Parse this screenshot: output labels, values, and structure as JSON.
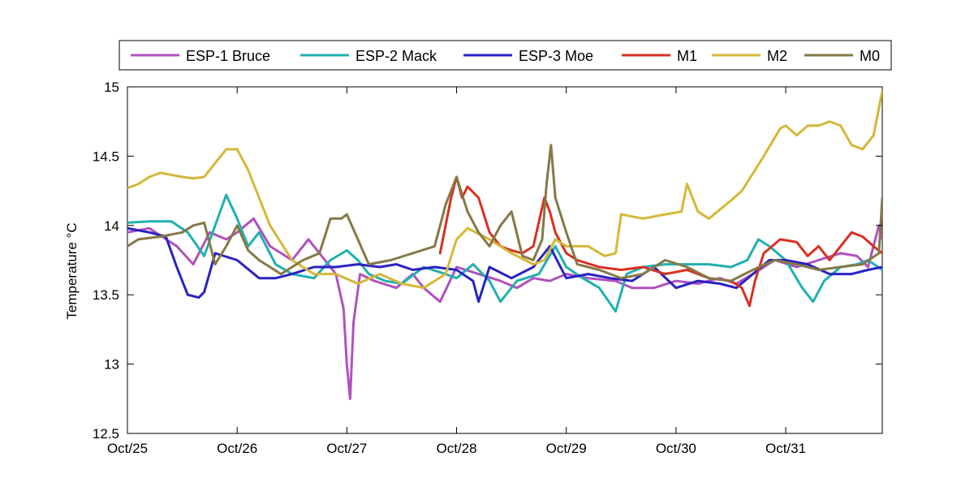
{
  "chart_data": {
    "type": "line",
    "title": "",
    "xlabel": "",
    "ylabel": "Temperature °C",
    "x_tick_labels": [
      "Oct/25",
      "Oct/26",
      "Oct/27",
      "Oct/28",
      "Oct/29",
      "Oct/30",
      "Oct/31"
    ],
    "x_tick_days": [
      25,
      26,
      27,
      28,
      29,
      30,
      31
    ],
    "xlim": [
      25,
      31.88
    ],
    "ylim": [
      12.5,
      15
    ],
    "y_ticks": [
      12.5,
      13,
      13.5,
      14,
      14.5,
      15
    ],
    "y_tick_labels": [
      "12.5",
      "13",
      "13.5",
      "14",
      "14.5",
      "15"
    ],
    "grid": false,
    "legend_position": "top",
    "legend_orientation": "horizontal",
    "series": [
      {
        "name": "ESP-1 Bruce",
        "color": "#b150c0",
        "x": [
          25.0,
          25.2,
          25.45,
          25.6,
          25.75,
          25.9,
          26.0,
          26.15,
          26.3,
          26.5,
          26.65,
          26.8,
          26.9,
          26.97,
          27.0,
          27.03,
          27.06,
          27.12,
          27.25,
          27.45,
          27.6,
          27.7,
          27.85,
          28.0,
          28.2,
          28.4,
          28.55,
          28.7,
          28.85,
          29.0,
          29.2,
          29.45,
          29.6,
          29.8,
          30.0,
          30.2,
          30.4,
          30.55,
          30.7,
          30.9,
          31.1,
          31.3,
          31.5,
          31.65,
          31.75,
          31.85,
          31.88
        ],
        "y": [
          13.95,
          13.98,
          13.85,
          13.72,
          13.95,
          13.9,
          13.95,
          14.05,
          13.85,
          13.75,
          13.9,
          13.75,
          13.65,
          13.4,
          13.0,
          12.75,
          13.3,
          13.65,
          13.6,
          13.55,
          13.65,
          13.55,
          13.45,
          13.7,
          13.65,
          13.6,
          13.55,
          13.62,
          13.6,
          13.65,
          13.62,
          13.6,
          13.55,
          13.55,
          13.6,
          13.58,
          13.62,
          13.58,
          13.65,
          13.75,
          13.7,
          13.75,
          13.8,
          13.78,
          13.7,
          14.0,
          13.9
        ]
      },
      {
        "name": "ESP-2 Mack",
        "color": "#20b0b0",
        "x": [
          25.0,
          25.2,
          25.4,
          25.55,
          25.7,
          25.8,
          25.9,
          26.0,
          26.1,
          26.2,
          26.35,
          26.5,
          26.7,
          26.85,
          27.0,
          27.1,
          27.2,
          27.35,
          27.5,
          27.7,
          27.9,
          28.0,
          28.15,
          28.3,
          28.4,
          28.55,
          28.75,
          28.9,
          29.0,
          29.15,
          29.3,
          29.45,
          29.55,
          29.7,
          29.9,
          30.1,
          30.3,
          30.5,
          30.65,
          30.75,
          30.85,
          31.0,
          31.15,
          31.25,
          31.35,
          31.5,
          31.65,
          31.75,
          31.88
        ],
        "y": [
          14.02,
          14.03,
          14.03,
          13.95,
          13.78,
          14.0,
          14.22,
          14.05,
          13.85,
          13.95,
          13.72,
          13.65,
          13.62,
          13.75,
          13.82,
          13.75,
          13.65,
          13.6,
          13.58,
          13.7,
          13.65,
          13.62,
          13.72,
          13.6,
          13.45,
          13.6,
          13.65,
          13.85,
          13.7,
          13.62,
          13.55,
          13.38,
          13.65,
          13.7,
          13.72,
          13.72,
          13.72,
          13.7,
          13.75,
          13.9,
          13.85,
          13.75,
          13.55,
          13.45,
          13.6,
          13.7,
          13.72,
          13.75,
          13.68
        ]
      },
      {
        "name": "ESP-3 Moe",
        "color": "#2a22c0",
        "x": [
          25.0,
          25.2,
          25.35,
          25.45,
          25.55,
          25.65,
          25.7,
          25.8,
          26.0,
          26.2,
          26.35,
          26.5,
          26.7,
          26.9,
          27.1,
          27.3,
          27.45,
          27.6,
          27.8,
          28.0,
          28.15,
          28.2,
          28.3,
          28.5,
          28.7,
          28.85,
          29.0,
          29.2,
          29.4,
          29.6,
          29.8,
          30.0,
          30.2,
          30.4,
          30.55,
          30.7,
          30.85,
          31.0,
          31.2,
          31.4,
          31.6,
          31.75,
          31.88
        ],
        "y": [
          13.98,
          13.95,
          13.92,
          13.7,
          13.5,
          13.48,
          13.52,
          13.8,
          13.75,
          13.62,
          13.62,
          13.65,
          13.7,
          13.7,
          13.72,
          13.7,
          13.72,
          13.68,
          13.7,
          13.68,
          13.6,
          13.45,
          13.7,
          13.62,
          13.7,
          13.85,
          13.62,
          13.65,
          13.62,
          13.6,
          13.7,
          13.55,
          13.6,
          13.58,
          13.55,
          13.65,
          13.75,
          13.75,
          13.72,
          13.65,
          13.65,
          13.68,
          13.7
        ]
      },
      {
        "name": "M1",
        "color": "#d83020",
        "x": [
          27.85,
          27.95,
          28.0,
          28.05,
          28.1,
          28.2,
          28.3,
          28.4,
          28.5,
          28.6,
          28.7,
          28.8,
          28.85,
          28.9,
          29.0,
          29.1,
          29.3,
          29.5,
          29.7,
          29.9,
          30.1,
          30.3,
          30.5,
          30.6,
          30.67,
          30.72,
          30.8,
          30.95,
          31.1,
          31.2,
          31.3,
          31.4,
          31.5,
          31.6,
          31.7,
          31.8,
          31.88
        ],
        "y": [
          13.8,
          14.2,
          14.35,
          14.2,
          14.28,
          14.2,
          13.95,
          13.85,
          13.82,
          13.8,
          13.85,
          14.2,
          14.1,
          13.95,
          13.8,
          13.75,
          13.7,
          13.68,
          13.7,
          13.65,
          13.68,
          13.62,
          13.6,
          13.55,
          13.42,
          13.6,
          13.8,
          13.9,
          13.88,
          13.78,
          13.85,
          13.75,
          13.85,
          13.95,
          13.92,
          13.85,
          13.8
        ]
      },
      {
        "name": "M2",
        "color": "#d4b838",
        "x": [
          25.0,
          25.1,
          25.2,
          25.3,
          25.5,
          25.6,
          25.7,
          25.8,
          25.9,
          26.0,
          26.1,
          26.3,
          26.5,
          26.7,
          26.9,
          27.1,
          27.3,
          27.5,
          27.7,
          27.9,
          28.0,
          28.1,
          28.3,
          28.5,
          28.7,
          28.8,
          28.9,
          29.0,
          29.2,
          29.35,
          29.45,
          29.5,
          29.7,
          29.9,
          30.05,
          30.1,
          30.2,
          30.3,
          30.5,
          30.6,
          30.8,
          30.95,
          31.0,
          31.1,
          31.2,
          31.3,
          31.4,
          31.5,
          31.6,
          31.7,
          31.8,
          31.88
        ],
        "y": [
          14.27,
          14.3,
          14.35,
          14.38,
          14.35,
          14.34,
          14.35,
          14.45,
          14.55,
          14.55,
          14.4,
          14.0,
          13.75,
          13.65,
          13.65,
          13.58,
          13.65,
          13.58,
          13.55,
          13.65,
          13.9,
          13.98,
          13.9,
          13.8,
          13.72,
          13.75,
          13.9,
          13.85,
          13.85,
          13.78,
          13.8,
          14.08,
          14.05,
          14.08,
          14.1,
          14.3,
          14.1,
          14.05,
          14.18,
          14.25,
          14.5,
          14.7,
          14.72,
          14.65,
          14.72,
          14.72,
          14.75,
          14.72,
          14.58,
          14.55,
          14.65,
          14.97
        ]
      },
      {
        "name": "M0",
        "color": "#857846",
        "x": [
          25.0,
          25.1,
          25.3,
          25.5,
          25.6,
          25.7,
          25.8,
          25.9,
          26.0,
          26.1,
          26.2,
          26.4,
          26.6,
          26.75,
          26.85,
          26.95,
          27.0,
          27.1,
          27.2,
          27.4,
          27.6,
          27.8,
          27.9,
          28.0,
          28.1,
          28.2,
          28.3,
          28.4,
          28.5,
          28.6,
          28.7,
          28.78,
          28.82,
          28.86,
          28.9,
          29.0,
          29.1,
          29.3,
          29.5,
          29.7,
          29.9,
          30.1,
          30.3,
          30.5,
          30.7,
          30.9,
          31.1,
          31.3,
          31.5,
          31.7,
          31.85,
          31.88
        ],
        "y": [
          13.85,
          13.9,
          13.92,
          13.95,
          14.0,
          14.02,
          13.72,
          13.85,
          14.0,
          13.82,
          13.75,
          13.65,
          13.75,
          13.8,
          14.05,
          14.05,
          14.08,
          13.9,
          13.72,
          13.75,
          13.8,
          13.85,
          14.15,
          14.35,
          14.1,
          13.95,
          13.85,
          14.0,
          14.1,
          13.78,
          13.75,
          13.9,
          14.3,
          14.58,
          14.2,
          13.95,
          13.72,
          13.68,
          13.62,
          13.65,
          13.75,
          13.7,
          13.62,
          13.6,
          13.68,
          13.75,
          13.72,
          13.68,
          13.7,
          13.72,
          13.8,
          14.2
        ]
      }
    ]
  }
}
